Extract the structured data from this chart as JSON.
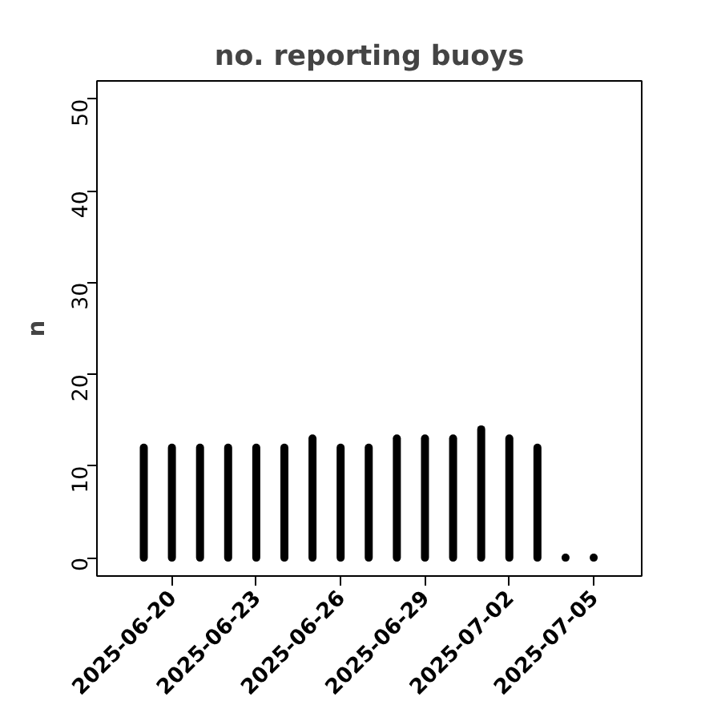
{
  "chart_data": {
    "type": "bar",
    "title": "no. reporting buoys",
    "ylabel": "n",
    "x": [
      "2025-06-19",
      "2025-06-20",
      "2025-06-21",
      "2025-06-22",
      "2025-06-23",
      "2025-06-24",
      "2025-06-25",
      "2025-06-26",
      "2025-06-27",
      "2025-06-28",
      "2025-06-29",
      "2025-06-30",
      "2025-07-01",
      "2025-07-02",
      "2025-07-03",
      "2025-07-04",
      "2025-07-05"
    ],
    "values": [
      12,
      12,
      12,
      12,
      12,
      12,
      13,
      12,
      12,
      13,
      13,
      13,
      14,
      13,
      12,
      0,
      0
    ],
    "color": "#000000",
    "xlim": [
      "2025-06-17T08:00",
      "2025-07-06T17:00"
    ],
    "xticks": [
      "2025-06-20",
      "2025-06-23",
      "2025-06-26",
      "2025-06-29",
      "2025-07-02",
      "2025-07-05"
    ],
    "ylim": [
      -2,
      52
    ],
    "yticks": [
      0,
      10,
      20,
      30,
      40,
      50
    ],
    "grid": false
  }
}
